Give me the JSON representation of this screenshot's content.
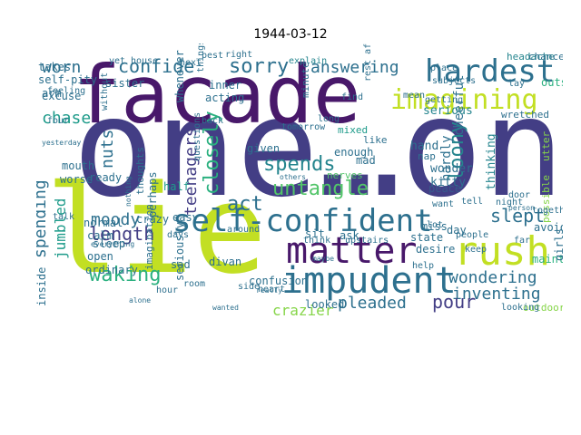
{
  "title": "1944-03-12",
  "colors": {
    "purple": "#48186a",
    "indigo": "#433e85",
    "blue": "#38598c",
    "teal_dark": "#2d708e",
    "teal": "#25858e",
    "green_teal": "#1e9b8a",
    "green": "#2ab07f",
    "lime_green": "#52c569",
    "lime": "#86d549",
    "yellow_green": "#c2df23",
    "yellow": "#fde725"
  },
  "words": [
    {
      "text": "one…on",
      "color": "indigo"
    },
    {
      "text": "lie",
      "color": "yellow_green"
    },
    {
      "text": "facade",
      "color": "purple"
    },
    {
      "text": "self-confident",
      "color": "teal_dark"
    },
    {
      "text": "impudent",
      "color": "teal_dark"
    },
    {
      "text": "matter",
      "color": "purple"
    },
    {
      "text": "rush",
      "color": "yellow_green"
    },
    {
      "text": "hardest",
      "color": "teal_dark"
    },
    {
      "text": "imagining",
      "color": "yellow_green"
    },
    {
      "text": "untangle",
      "color": "lime_green"
    },
    {
      "text": "spends",
      "color": "teal"
    },
    {
      "text": "act",
      "color": "teal_dark"
    },
    {
      "text": "sorry",
      "color": "teal_dark"
    },
    {
      "text": "confide",
      "color": "teal_dark"
    },
    {
      "text": "worn",
      "color": "teal_dark"
    },
    {
      "text": "answering",
      "color": "teal_dark"
    },
    {
      "text": "waking",
      "color": "green"
    },
    {
      "text": "length",
      "color": "indigo"
    },
    {
      "text": "moody",
      "color": "teal_dark"
    },
    {
      "text": "closely",
      "color": "green"
    },
    {
      "text": "spending",
      "color": "teal_dark"
    },
    {
      "text": "loony",
      "color": "teal"
    },
    {
      "text": "slept",
      "color": "teal_dark"
    },
    {
      "text": "wondering",
      "color": "teal_dark"
    },
    {
      "text": "inventing",
      "color": "teal_dark"
    },
    {
      "text": "pleaded",
      "color": "teal_dark"
    },
    {
      "text": "pour",
      "color": "indigo"
    },
    {
      "text": "crazier",
      "color": "lime"
    },
    {
      "text": "nuts",
      "color": "teal_dark"
    },
    {
      "text": "chase",
      "color": "green_teal"
    },
    {
      "text": "teenagers",
      "color": "indigo"
    },
    {
      "text": "jumbled",
      "color": "green_teal"
    },
    {
      "text": "explain",
      "color": "teal"
    },
    {
      "text": "tomorrow",
      "color": "teal_dark"
    },
    {
      "text": "mixed",
      "color": "green_teal"
    },
    {
      "text": "enough",
      "color": "teal_dark"
    },
    {
      "text": "peace",
      "color": "blue"
    },
    {
      "text": "hardly",
      "color": "teal_dark"
    },
    {
      "text": "cheerful",
      "color": "teal_dark"
    },
    {
      "text": "thinking",
      "color": "teal"
    },
    {
      "text": "possible",
      "color": "lime"
    },
    {
      "text": "utter",
      "color": "lime"
    },
    {
      "text": "headache",
      "color": "teal"
    },
    {
      "text": "chance",
      "color": "teal_dark"
    },
    {
      "text": "subjects",
      "color": "teal_dark"
    },
    {
      "text": "mean",
      "color": "teal_dark"
    },
    {
      "text": "nap",
      "color": "teal_dark"
    },
    {
      "text": "lay",
      "color": "teal_dark"
    },
    {
      "text": "outside",
      "color": "green"
    },
    {
      "text": "serious",
      "color": "teal"
    },
    {
      "text": "wretched",
      "color": "teal_dark"
    },
    {
      "text": "hand",
      "color": "teal_dark"
    },
    {
      "text": "wonder",
      "color": "teal_dark"
    },
    {
      "text": "kitty",
      "color": "teal_dark"
    },
    {
      "text": "self-pity",
      "color": "teal_dark"
    },
    {
      "text": "sister",
      "color": "teal_dark"
    },
    {
      "text": "excuse",
      "color": "teal_dark"
    },
    {
      "text": "arm",
      "color": "teal_dark"
    },
    {
      "text": "takes",
      "color": "teal_dark"
    },
    {
      "text": "inner",
      "color": "teal_dark"
    },
    {
      "text": "whenever",
      "color": "teal_dark"
    },
    {
      "text": "acting",
      "color": "teal_dark"
    },
    {
      "text": "minute",
      "color": "teal_dark"
    },
    {
      "text": "given",
      "color": "teal_dark"
    },
    {
      "text": "half",
      "color": "green_teal"
    },
    {
      "text": "ready",
      "color": "teal_dark"
    },
    {
      "text": "mouth",
      "color": "teal_dark"
    },
    {
      "text": "worse",
      "color": "teal_dark"
    },
    {
      "text": "thoughts",
      "color": "teal_dark"
    },
    {
      "text": "perhaps",
      "color": "teal_dark"
    },
    {
      "text": "crazy",
      "color": "teal_dark"
    },
    {
      "text": "normal",
      "color": "teal_dark"
    },
    {
      "text": "calm",
      "color": "teal_dark"
    },
    {
      "text": "sleep",
      "color": "teal_dark"
    },
    {
      "text": "open",
      "color": "teal_dark"
    },
    {
      "text": "easy",
      "color": "teal_dark"
    },
    {
      "text": "sit",
      "color": "teal_dark"
    },
    {
      "text": "ask",
      "color": "teal_dark"
    },
    {
      "text": "state",
      "color": "teal_dark"
    },
    {
      "text": "miss",
      "color": "teal_dark"
    },
    {
      "text": "day",
      "color": "teal_dark"
    },
    {
      "text": "desire",
      "color": "teal_dark"
    },
    {
      "text": "avoid",
      "color": "teal_dark"
    },
    {
      "text": "maintain",
      "color": "green"
    },
    {
      "text": "girls",
      "color": "teal_dark"
    },
    {
      "text": "divan",
      "color": "teal_dark"
    },
    {
      "text": "sad",
      "color": "teal_dark"
    },
    {
      "text": "confusion",
      "color": "teal_dark"
    },
    {
      "text": "looked",
      "color": "teal_dark"
    },
    {
      "text": "ordinary",
      "color": "teal_dark"
    },
    {
      "text": "inside",
      "color": "teal_dark"
    },
    {
      "text": "seriously",
      "color": "teal_dark"
    },
    {
      "text": "imagination",
      "color": "teal_dark"
    },
    {
      "text": "around",
      "color": "teal_dark"
    },
    {
      "text": "nerves",
      "color": "lime_green"
    },
    {
      "text": "mad",
      "color": "teal_dark"
    },
    {
      "text": "like",
      "color": "teal_dark"
    },
    {
      "text": "outdoors",
      "color": "lime"
    },
    {
      "text": "together",
      "color": "teal_dark"
    },
    {
      "text": "feeling",
      "color": "teal_dark"
    },
    {
      "text": "four",
      "color": "teal_dark"
    },
    {
      "text": "yet",
      "color": "teal_dark"
    },
    {
      "text": "house",
      "color": "teal_dark"
    },
    {
      "text": "next",
      "color": "teal_dark"
    },
    {
      "text": "best",
      "color": "teal_dark"
    },
    {
      "text": "right",
      "color": "teal_dark"
    },
    {
      "text": "things",
      "color": "teal_dark"
    },
    {
      "text": "find",
      "color": "teal_dark"
    },
    {
      "text": "place",
      "color": "teal_dark"
    },
    {
      "text": "getting",
      "color": "teal_dark"
    },
    {
      "text": "rest afternoon",
      "color": "teal_dark"
    },
    {
      "text": "long",
      "color": "teal_dark"
    },
    {
      "text": "back",
      "color": "teal_dark"
    },
    {
      "text": "days",
      "color": "teal_dark"
    },
    {
      "text": "hour",
      "color": "teal_dark"
    },
    {
      "text": "room",
      "color": "teal_dark"
    },
    {
      "text": "side",
      "color": "teal_dark"
    },
    {
      "text": "really",
      "color": "teal_dark"
    },
    {
      "text": "think",
      "color": "teal_dark"
    },
    {
      "text": "upstairs",
      "color": "teal_dark"
    },
    {
      "text": "help",
      "color": "teal_dark"
    },
    {
      "text": "talk",
      "color": "teal_dark"
    },
    {
      "text": "everything",
      "color": "teal_dark"
    },
    {
      "text": "heart",
      "color": "teal_dark"
    },
    {
      "text": "wanted",
      "color": "teal_dark"
    },
    {
      "text": "alone",
      "color": "teal_dark"
    },
    {
      "text": "looking",
      "color": "teal_dark"
    },
    {
      "text": "others",
      "color": "teal_dark"
    },
    {
      "text": "maybe",
      "color": "teal_dark"
    },
    {
      "text": "person",
      "color": "teal_dark"
    },
    {
      "text": "door",
      "color": "teal_dark"
    },
    {
      "text": "far",
      "color": "teal_dark"
    },
    {
      "text": "night",
      "color": "teal_dark"
    },
    {
      "text": "people",
      "color": "teal_dark"
    },
    {
      "text": "keep",
      "color": "teal_dark"
    },
    {
      "text": "tell",
      "color": "teal_dark"
    },
    {
      "text": "want",
      "color": "teal_dark"
    },
    {
      "text": "lot",
      "color": "teal_dark"
    },
    {
      "text": "without",
      "color": "teal_dark"
    },
    {
      "text": "questions",
      "color": "teal_dark"
    },
    {
      "text": "nothing",
      "color": "teal_dark"
    },
    {
      "text": "yesterday",
      "color": "teal_dark"
    }
  ]
}
